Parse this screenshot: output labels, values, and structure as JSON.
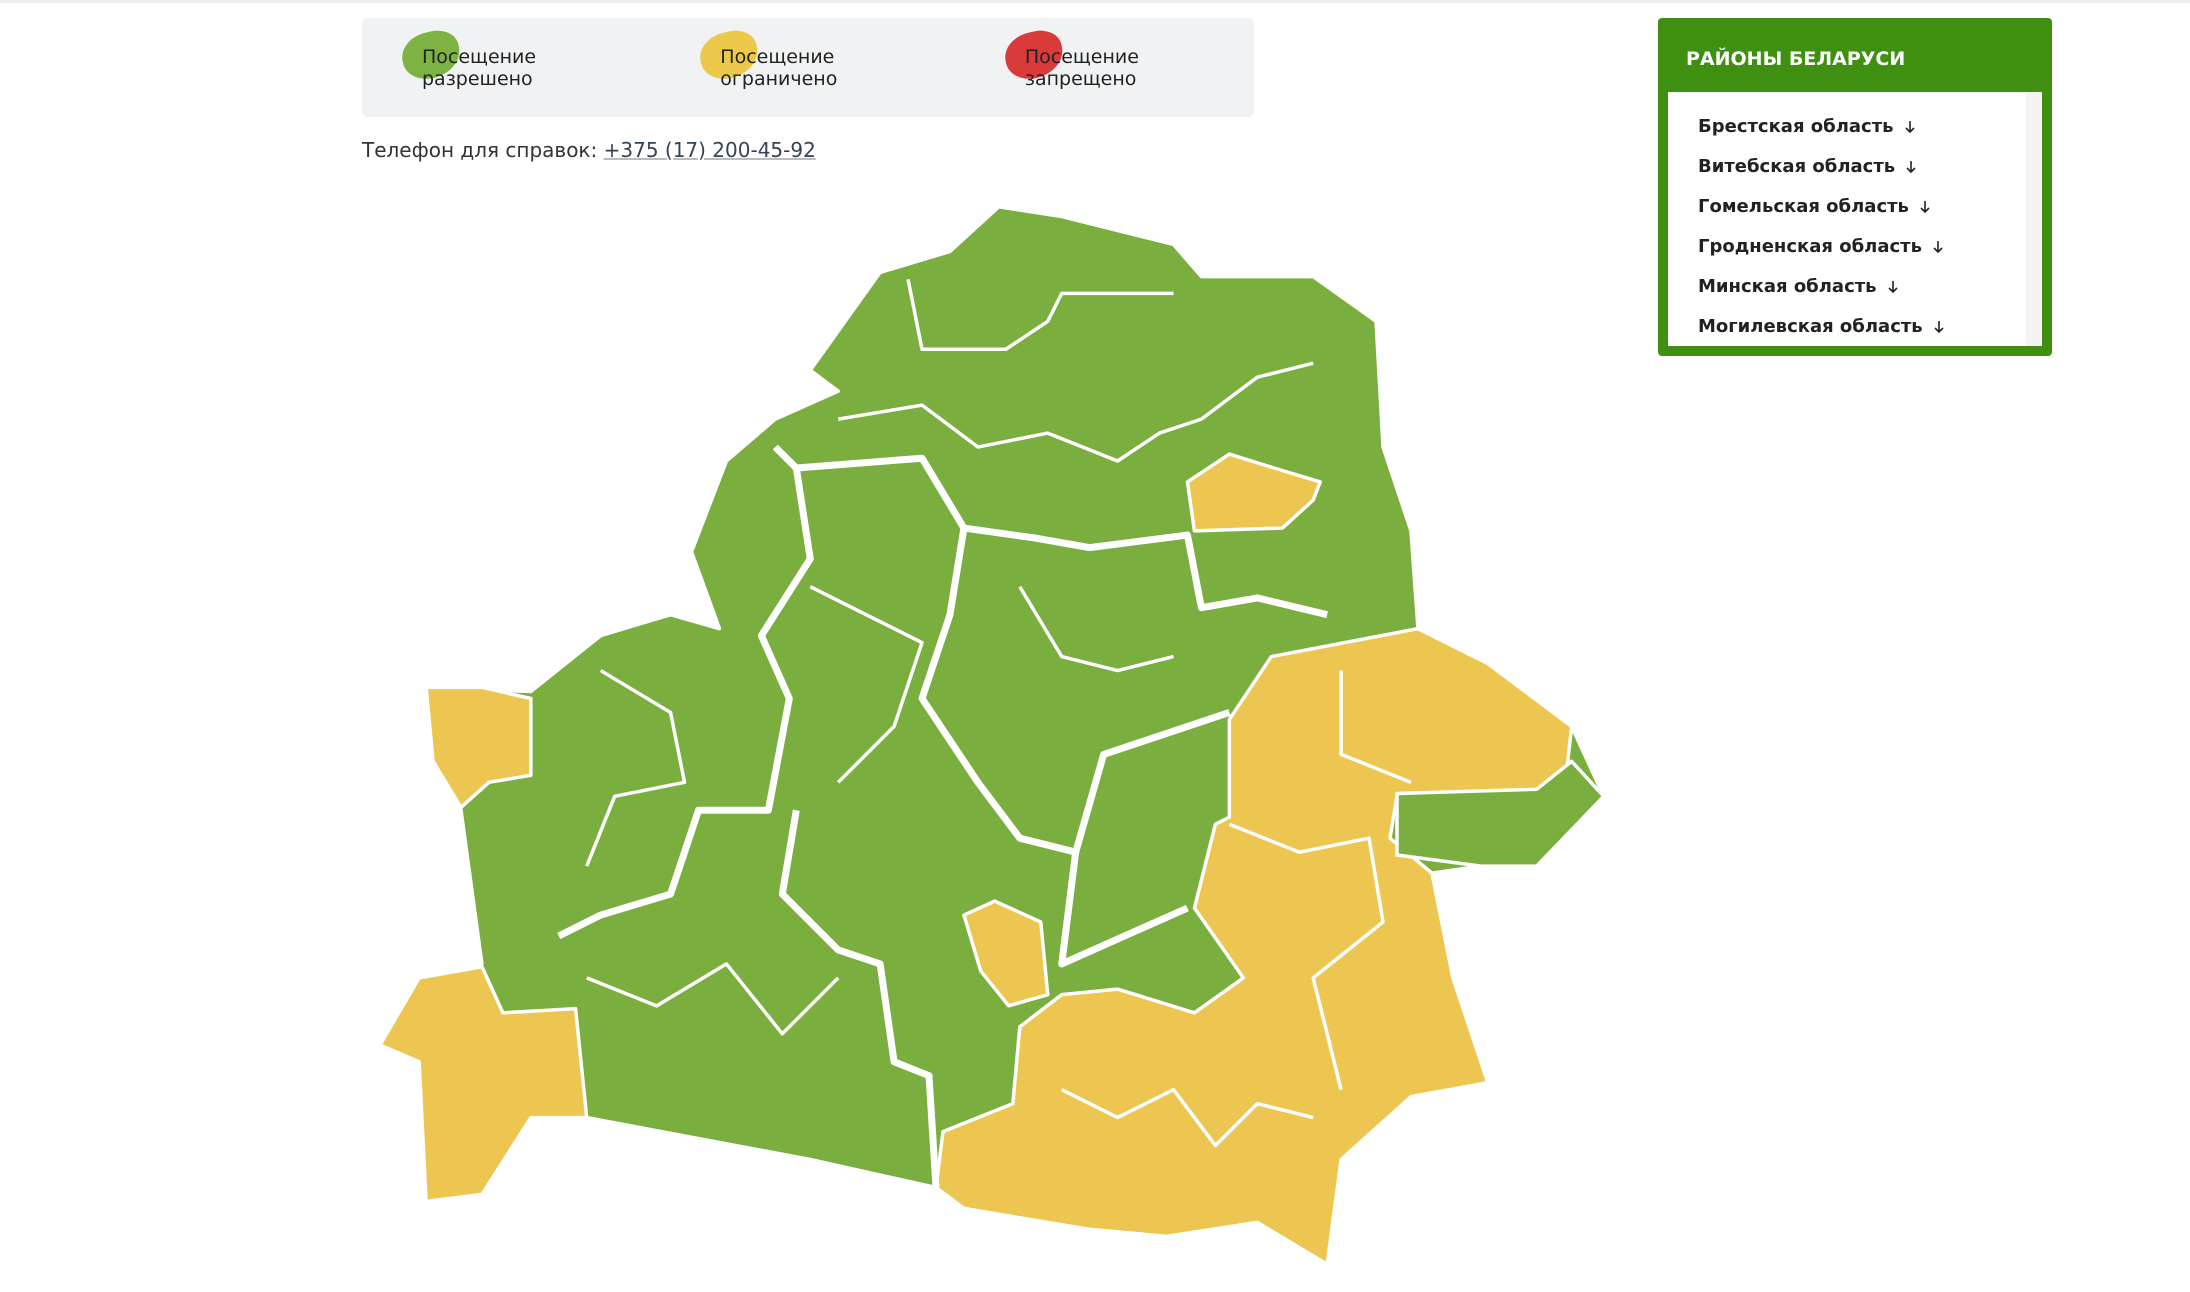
{
  "legend": {
    "items": [
      {
        "label": "Посещение разрешено",
        "color": "#7cb342"
      },
      {
        "label": "Посещение ограничено",
        "color": "#ecc94b"
      },
      {
        "label": "Посещение запрещено",
        "color": "#d93a3a"
      }
    ]
  },
  "phone": {
    "label": "Телефон для справок:",
    "number": "+375 (17) 200-45-92"
  },
  "panel": {
    "title": "РАЙОНЫ БЕЛАРУСИ",
    "regions": [
      "Брестская область",
      "Витебская область",
      "Гомельская область",
      "Гродненская область",
      "Минская область",
      "Могилевская область"
    ]
  }
}
